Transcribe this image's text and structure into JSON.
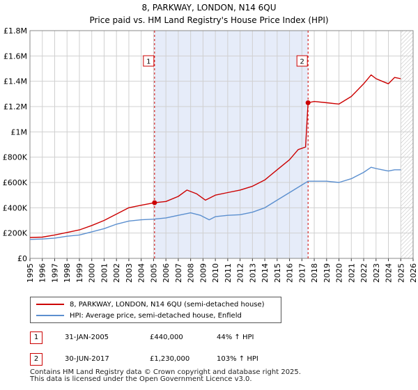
{
  "title_line1": "8, PARKWAY, LONDON, N14 6QU",
  "title_line2": "Price paid vs. HM Land Registry's House Price Index (HPI)",
  "chart_data": {
    "type": "line",
    "x_range": [
      1995,
      2026
    ],
    "ylim": [
      0,
      1800000
    ],
    "y_ticks": [
      {
        "value": 0,
        "label": "£0"
      },
      {
        "value": 200000,
        "label": "£200K"
      },
      {
        "value": 400000,
        "label": "£400K"
      },
      {
        "value": 600000,
        "label": "£600K"
      },
      {
        "value": 800000,
        "label": "£800K"
      },
      {
        "value": 1000000,
        "label": "£1M"
      },
      {
        "value": 1200000,
        "label": "£1.2M"
      },
      {
        "value": 1400000,
        "label": "£1.4M"
      },
      {
        "value": 1600000,
        "label": "£1.6M"
      },
      {
        "value": 1800000,
        "label": "£1.8M"
      }
    ],
    "x_ticks": [
      "1995",
      "1996",
      "1997",
      "1998",
      "1999",
      "2000",
      "2001",
      "2002",
      "2003",
      "2004",
      "2005",
      "2006",
      "2007",
      "2008",
      "2009",
      "2010",
      "2011",
      "2012",
      "2013",
      "2014",
      "2015",
      "2016",
      "2017",
      "2018",
      "2019",
      "2020",
      "2021",
      "2022",
      "2023",
      "2024",
      "2025",
      "2026"
    ],
    "grid": true,
    "shaded_range": [
      2005.08,
      2017.5
    ],
    "forecast_from": 2025.0,
    "series": [
      {
        "name": "8, PARKWAY, LONDON, N14 6QU (semi-detached house)",
        "color": "#cc0000",
        "x": [
          1995.0,
          1996.0,
          1997.0,
          1998.0,
          1999.0,
          2000.0,
          2001.0,
          2002.0,
          2003.0,
          2004.0,
          2005.08,
          2006.0,
          2007.0,
          2007.7,
          2008.5,
          2009.2,
          2010.0,
          2011.0,
          2012.0,
          2013.0,
          2014.0,
          2015.0,
          2016.0,
          2016.7,
          2017.3,
          2017.5,
          2018.0,
          2019.0,
          2020.0,
          2021.0,
          2022.0,
          2022.6,
          2023.0,
          2023.5,
          2024.0,
          2024.5,
          2025.0
        ],
        "y": [
          165000,
          168000,
          185000,
          205000,
          225000,
          260000,
          300000,
          350000,
          400000,
          420000,
          440000,
          450000,
          490000,
          540000,
          510000,
          460000,
          500000,
          520000,
          540000,
          570000,
          620000,
          700000,
          780000,
          860000,
          880000,
          1230000,
          1240000,
          1230000,
          1220000,
          1280000,
          1380000,
          1450000,
          1420000,
          1400000,
          1380000,
          1430000,
          1420000
        ]
      },
      {
        "name": "HPI: Average price, semi-detached house, Enfield",
        "color": "#5b8fcf",
        "x": [
          1995.0,
          1996.0,
          1997.0,
          1998.0,
          1999.0,
          2000.0,
          2001.0,
          2002.0,
          2003.0,
          2004.0,
          2005.0,
          2006.0,
          2007.0,
          2008.0,
          2008.8,
          2009.5,
          2010.0,
          2011.0,
          2012.0,
          2013.0,
          2014.0,
          2015.0,
          2016.0,
          2017.0,
          2017.5,
          2018.0,
          2019.0,
          2020.0,
          2021.0,
          2022.0,
          2022.6,
          2023.0,
          2023.5,
          2024.0,
          2024.5,
          2025.0
        ],
        "y": [
          150000,
          153000,
          160000,
          175000,
          185000,
          210000,
          235000,
          270000,
          295000,
          305000,
          310000,
          320000,
          340000,
          360000,
          340000,
          305000,
          330000,
          340000,
          345000,
          365000,
          400000,
          460000,
          520000,
          580000,
          610000,
          610000,
          610000,
          600000,
          630000,
          680000,
          720000,
          710000,
          700000,
          690000,
          700000,
          700000
        ]
      }
    ],
    "annotations": [
      {
        "label": "1",
        "x": 2005.08,
        "y": 440000
      },
      {
        "label": "2",
        "x": 2017.5,
        "y": 1230000
      }
    ]
  },
  "legend": {
    "items": [
      {
        "label": "8, PARKWAY, LONDON, N14 6QU (semi-detached house)",
        "color": "#cc0000"
      },
      {
        "label": "HPI: Average price, semi-detached house, Enfield",
        "color": "#5b8fcf"
      }
    ]
  },
  "sales": [
    {
      "num": "1",
      "date": "31-JAN-2005",
      "price": "£440,000",
      "hpi": "44% ↑ HPI"
    },
    {
      "num": "2",
      "date": "30-JUN-2017",
      "price": "£1,230,000",
      "hpi": "103% ↑ HPI"
    }
  ],
  "footer_line1": "Contains HM Land Registry data © Crown copyright and database right 2025.",
  "footer_line2": "This data is licensed under the Open Government Licence v3.0."
}
